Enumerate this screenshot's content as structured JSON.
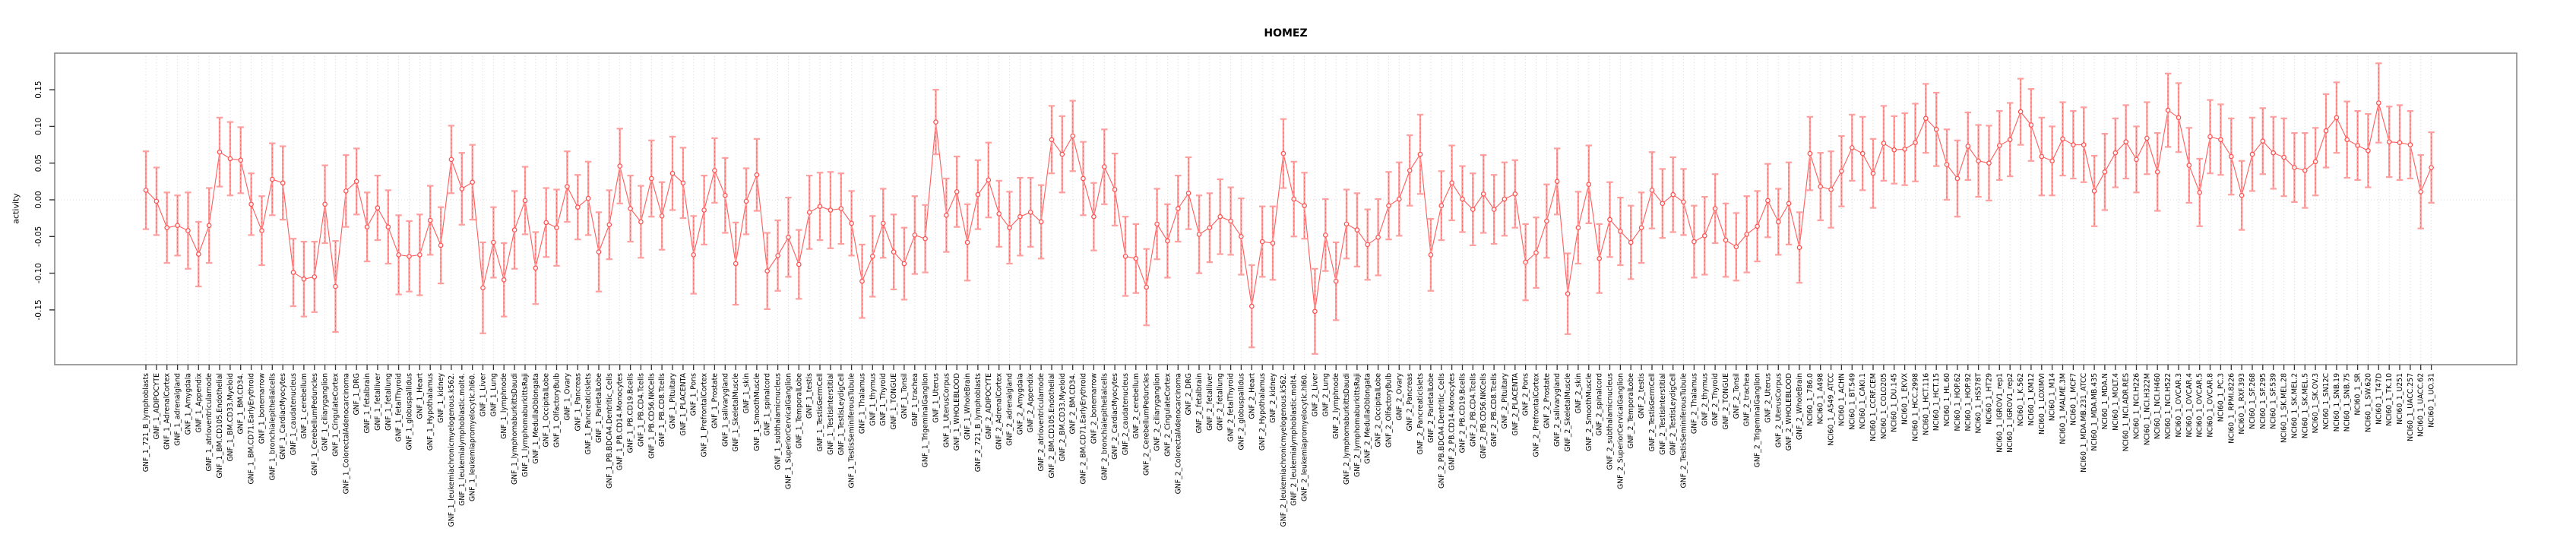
{
  "page": {
    "title": "HOMEZ"
  },
  "chart_data": {
    "type": "line",
    "title": "HOMEZ",
    "subtitle": "",
    "xlabel": "",
    "ylabel": "activity",
    "ylim": [
      -0.225,
      0.2
    ],
    "yticks": [
      "0.15",
      "0.10",
      "0.05",
      "0.00",
      "-0.05",
      "-0.10",
      "-0.15"
    ],
    "ytick_values": [
      0.15,
      0.1,
      0.05,
      0.0,
      -0.05,
      -0.1,
      -0.15
    ],
    "grid": true,
    "legend": "none",
    "marker": "open-circle",
    "error_bars": true,
    "colors": {
      "point": "#ff4d4d",
      "line": "#ff5c5c",
      "error_bar": "#ffa0a0",
      "error_dash": "#ff6060",
      "grid": "#d9d9d9",
      "box": "#888888",
      "tick": "#333333",
      "text": "#000000"
    },
    "columns": [
      "label",
      "value",
      "ci_half_width"
    ],
    "points": [
      [
        "GNF_1_721_B_lymphoblasts",
        0.013,
        0.053
      ],
      [
        "GNF_1_ADIPOCYTE",
        -0.002,
        0.046
      ],
      [
        "GNF_1_AdrenalCortex",
        -0.038,
        0.048
      ],
      [
        "GNF_1_adrenalgland",
        -0.035,
        0.041
      ],
      [
        "GNF_1_Amygdala",
        -0.042,
        0.052
      ],
      [
        "GNF_1_Appendix",
        -0.074,
        0.044
      ],
      [
        "GNF_1_atrioventricularnode",
        -0.035,
        0.051
      ],
      [
        "GNF_1_BM.CD105.Endothelial",
        0.065,
        0.047
      ],
      [
        "GNF_1_BM.CD33.Myeloid",
        0.056,
        0.05
      ],
      [
        "GNF_1_BM.CD34.",
        0.054,
        0.045
      ],
      [
        "GNF_1_BM.CD71.EarlyErythroid",
        -0.006,
        0.042
      ],
      [
        "GNF_1_bonemarrow",
        -0.042,
        0.047
      ],
      [
        "GNF_1_bronchialepithelialcells",
        0.028,
        0.049
      ],
      [
        "GNF_1_CardiacMyocytes",
        0.023,
        0.05
      ],
      [
        "GNF_1_caudatenucleus",
        -0.099,
        0.046
      ],
      [
        "GNF_1_cerebellum",
        -0.108,
        0.051
      ],
      [
        "GNF_1_CerebellumPeduncles",
        -0.105,
        0.048
      ],
      [
        "GNF_1_ciliaryganglion",
        -0.006,
        0.053
      ],
      [
        "GNF_1_CingulateCortex",
        -0.118,
        0.062
      ],
      [
        "GNF_1_ColorectalAdenocarcinoma",
        0.012,
        0.049
      ],
      [
        "GNF_1_DRG",
        0.025,
        0.045
      ],
      [
        "GNF_1_fetalbrain",
        -0.037,
        0.047
      ],
      [
        "GNF_1_fetalliver",
        -0.011,
        0.044
      ],
      [
        "GNF_1_fetallung",
        -0.037,
        0.05
      ],
      [
        "GNF_1_fetalThyroid",
        -0.075,
        0.054
      ],
      [
        "GNF_1_globuspallidus",
        -0.077,
        0.048
      ],
      [
        "GNF_1_Heart",
        -0.075,
        0.055
      ],
      [
        "GNF_1_Hypothalamus",
        -0.028,
        0.047
      ],
      [
        "GNF_1_kidney",
        -0.062,
        0.052
      ],
      [
        "GNF_1_leukemiachronicmyelogenous.k562.",
        0.055,
        0.046
      ],
      [
        "GNF_1_leukemialymphoblastic.molt4.",
        0.015,
        0.049
      ],
      [
        "GNF_1_leukemiapromyelocytic.hl60.",
        0.024,
        0.051
      ],
      [
        "GNF_1_Liver",
        -0.12,
        0.062
      ],
      [
        "GNF_1_Lung",
        -0.058,
        0.048
      ],
      [
        "GNF_1_lymphnode",
        -0.109,
        0.05
      ],
      [
        "GNF_1_lymphomaburkittsDaudi",
        -0.041,
        0.053
      ],
      [
        "GNF_1_lymphomaburkittsRaji",
        -0.001,
        0.046
      ],
      [
        "GNF_1_MedullaOblongata",
        -0.093,
        0.049
      ],
      [
        "GNF_1_OccipitalLobe",
        -0.031,
        0.047
      ],
      [
        "GNF_1_OlfactoryBulb",
        -0.038,
        0.052
      ],
      [
        "GNF_1_Ovary",
        0.018,
        0.048
      ],
      [
        "GNF_1_Pancreas",
        -0.01,
        0.044
      ],
      [
        "GNF_1_PancreaticIslets",
        0.002,
        0.05
      ],
      [
        "GNF_1_ParietalLobe",
        -0.071,
        0.054
      ],
      [
        "GNF_1_PB.BDCA4.Dentritic_Cells",
        -0.034,
        0.047
      ],
      [
        "GNF_1_PB.CD14.Monocytes",
        0.046,
        0.051
      ],
      [
        "GNF_1_PB.CD19.Bcells",
        -0.012,
        0.045
      ],
      [
        "GNF_1_PB.CD4.Tcells",
        -0.03,
        0.049
      ],
      [
        "GNF_1_PB.CD56.NKCells",
        0.029,
        0.052
      ],
      [
        "GNF_1_PB.CD8.Tcells",
        -0.022,
        0.046
      ],
      [
        "GNF_1_Pituitary",
        0.036,
        0.05
      ],
      [
        "GNF_1_PLACENTA",
        0.023,
        0.048
      ],
      [
        "GNF_1_Pons",
        -0.075,
        0.053
      ],
      [
        "GNF_1_PrefrontalCortex",
        -0.014,
        0.047
      ],
      [
        "GNF_1_Prostate",
        0.04,
        0.044
      ],
      [
        "GNF_1_salivarygland",
        0.006,
        0.051
      ],
      [
        "GNF_1_SkeletalMuscle",
        -0.087,
        0.056
      ],
      [
        "GNF_1_skin",
        -0.002,
        0.045
      ],
      [
        "GNF_1_SmoothMuscle",
        0.034,
        0.049
      ],
      [
        "GNF_1_spinalcord",
        -0.097,
        0.052
      ],
      [
        "GNF_1_subthalamicnucleus",
        -0.076,
        0.048
      ],
      [
        "GNF_1_SuperiorCervicalGanglion",
        -0.051,
        0.054
      ],
      [
        "GNF_1_TemporalLobe",
        -0.088,
        0.047
      ],
      [
        "GNF_1_testis",
        -0.017,
        0.05
      ],
      [
        "GNF_1_TestisGermCell",
        -0.009,
        0.046
      ],
      [
        "GNF_1_TestisInterstitial",
        -0.014,
        0.052
      ],
      [
        "GNF_1_TestisLeydigCell",
        -0.012,
        0.048
      ],
      [
        "GNF_1_TestisSeminiferousTubule",
        -0.032,
        0.044
      ],
      [
        "GNF_1_Thalamus",
        -0.111,
        0.05
      ],
      [
        "GNF_1_thymus",
        -0.077,
        0.055
      ],
      [
        "GNF_1_Thyroid",
        -0.032,
        0.047
      ],
      [
        "GNF_1_TONGUE",
        -0.071,
        0.051
      ],
      [
        "GNF_1_Tonsil",
        -0.087,
        0.049
      ],
      [
        "GNF_1_trachea",
        -0.048,
        0.053
      ],
      [
        "GNF_1_TrigeminalGanglion",
        -0.053,
        0.046
      ],
      [
        "GNF_1_Uterus",
        0.106,
        0.044
      ],
      [
        "GNF_1_UterusCorpus",
        -0.021,
        0.05
      ],
      [
        "GNF_1_WHOLEBLOOD",
        0.011,
        0.048
      ],
      [
        "GNF_1_WholeBrain",
        -0.058,
        0.052
      ],
      [
        "GNF_2_721_B_lymphoblasts",
        0.007,
        0.047
      ],
      [
        "GNF_2_ADIPOCYTE",
        0.027,
        0.051
      ],
      [
        "GNF_2_AdrenalCortex",
        -0.019,
        0.045
      ],
      [
        "GNF_2_adrenalgland",
        -0.038,
        0.049
      ],
      [
        "GNF_2_Amygdala",
        -0.023,
        0.053
      ],
      [
        "GNF_2_Appendix",
        -0.017,
        0.047
      ],
      [
        "GNF_2_atrioventricularnode",
        -0.03,
        0.05
      ],
      [
        "GNF_2_BM.CD105.Endothelial",
        0.082,
        0.046
      ],
      [
        "GNF_2_BM.CD33.Myeloid",
        0.062,
        0.052
      ],
      [
        "GNF_2_BM.CD34.",
        0.087,
        0.048
      ],
      [
        "GNF_2_BM.CD71.EarlyErythroid",
        0.029,
        0.05
      ],
      [
        "GNF_2_bonemarrow",
        -0.023,
        0.046
      ],
      [
        "GNF_2_bronchialepithelialcells",
        0.045,
        0.051
      ],
      [
        "GNF_2_CardiacMyocytes",
        0.014,
        0.049
      ],
      [
        "GNF_2_caudatenucleus",
        -0.077,
        0.054
      ],
      [
        "GNF_2_cerebellum",
        -0.08,
        0.047
      ],
      [
        "GNF_2_CerebellumPeduncles",
        -0.119,
        0.052
      ],
      [
        "GNF_2_ciliaryganglion",
        -0.033,
        0.048
      ],
      [
        "GNF_2_CingulateCortex",
        -0.056,
        0.05
      ],
      [
        "GNF_2_ColorectalAdenocarcinoma",
        -0.012,
        0.045
      ],
      [
        "GNF_2_DRG",
        0.009,
        0.049
      ],
      [
        "GNF_2_fetalbrain",
        -0.047,
        0.053
      ],
      [
        "GNF_2_fetalliver",
        -0.038,
        0.047
      ],
      [
        "GNF_2_fetallung",
        -0.023,
        0.051
      ],
      [
        "GNF_2_fetalThyroid",
        -0.029,
        0.046
      ],
      [
        "GNF_2_globuspallidus",
        -0.05,
        0.052
      ],
      [
        "GNF_2_Heart",
        -0.145,
        0.056
      ],
      [
        "GNF_2_Hypothalamus",
        -0.057,
        0.048
      ],
      [
        "GNF_2_kidney",
        -0.059,
        0.05
      ],
      [
        "GNF_2_leukemiachronicmyelogenous.k562.",
        0.063,
        0.047
      ],
      [
        "GNF_2_leukemialymphoblastic.molt4.",
        0.001,
        0.051
      ],
      [
        "GNF_2_leukemiapromyelocytic.hl60.",
        -0.008,
        0.045
      ],
      [
        "GNF_2_Liver",
        -0.152,
        0.058
      ],
      [
        "GNF_2_Lung",
        -0.048,
        0.049
      ],
      [
        "GNF_2_lymphnode",
        -0.111,
        0.053
      ],
      [
        "GNF_2_lymphomaburkittsDaudi",
        -0.033,
        0.047
      ],
      [
        "GNF_2_lymphomaburkittsRaji",
        -0.041,
        0.05
      ],
      [
        "GNF_2_MedullaOblongata",
        -0.061,
        0.048
      ],
      [
        "GNF_2_OccipitalLobe",
        -0.051,
        0.052
      ],
      [
        "GNF_2_OlfactoryBulb",
        -0.008,
        0.046
      ],
      [
        "GNF_2_Ovary",
        0.001,
        0.05
      ],
      [
        "GNF_2_Pancreas",
        0.04,
        0.048
      ],
      [
        "GNF_2_PancreaticIslets",
        0.062,
        0.054
      ],
      [
        "GNF_2_ParietalLobe",
        -0.075,
        0.049
      ],
      [
        "GNF_2_PB.BDCA4.Dentritic_Cells",
        -0.008,
        0.047
      ],
      [
        "GNF_2_PB.CD14.Monocytes",
        0.023,
        0.051
      ],
      [
        "GNF_2_PB.CD19.Bcells",
        0.001,
        0.045
      ],
      [
        "GNF_2_PB.CD4.Tcells",
        -0.013,
        0.049
      ],
      [
        "GNF_2_PB.CD56.NKCells",
        0.008,
        0.053
      ],
      [
        "GNF_2_PB.CD8.Tcells",
        -0.013,
        0.047
      ],
      [
        "GNF_2_Pituitary",
        0.001,
        0.05
      ],
      [
        "GNF_2_PLACENTA",
        0.008,
        0.046
      ],
      [
        "GNF_2_Pons",
        -0.085,
        0.052
      ],
      [
        "GNF_2_PrefrontalCortex",
        -0.072,
        0.048
      ],
      [
        "GNF_2_Prostate",
        -0.029,
        0.05
      ],
      [
        "GNF_2_salivarygland",
        0.025,
        0.045
      ],
      [
        "GNF_2_SkeletalMuscle",
        -0.128,
        0.055
      ],
      [
        "GNF_2_skin",
        -0.038,
        0.049
      ],
      [
        "GNF_2_SmoothMuscle",
        0.021,
        0.053
      ],
      [
        "GNF_2_spinalcord",
        -0.08,
        0.047
      ],
      [
        "GNF_2_subthalamicnucleus",
        -0.027,
        0.051
      ],
      [
        "GNF_2_SuperiorCervicalGanglion",
        -0.043,
        0.046
      ],
      [
        "GNF_2_TemporalLobe",
        -0.058,
        0.05
      ],
      [
        "GNF_2_testis",
        -0.038,
        0.048
      ],
      [
        "GNF_2_TestisGermCell",
        0.013,
        0.052
      ],
      [
        "GNF_2_TestisInterstitial",
        -0.005,
        0.047
      ],
      [
        "GNF_2_TestisLeydigCell",
        0.007,
        0.051
      ],
      [
        "GNF_2_TestisSeminiferousTubule",
        -0.003,
        0.045
      ],
      [
        "GNF_2_Thalamus",
        -0.057,
        0.049
      ],
      [
        "GNF_2_thymus",
        -0.049,
        0.053
      ],
      [
        "GNF_2_Thyroid",
        -0.012,
        0.047
      ],
      [
        "GNF_2_TONGUE",
        -0.055,
        0.05
      ],
      [
        "GNF_2_Tonsil",
        -0.064,
        0.046
      ],
      [
        "GNF_2_trachea",
        -0.047,
        0.052
      ],
      [
        "GNF_2_TrigeminalGanglion",
        -0.036,
        0.048
      ],
      [
        "GNF_2_Uterus",
        -0.001,
        0.05
      ],
      [
        "GNF_2_UterusCorpus",
        -0.03,
        0.045
      ],
      [
        "GNF_2_WHOLEBLOOD",
        -0.005,
        0.056
      ],
      [
        "GNF_2_WholeBrain",
        -0.065,
        0.048
      ],
      [
        "NCI60_1_786.0",
        0.063,
        0.05
      ],
      [
        "NCI60_1_A498",
        0.018,
        0.046
      ],
      [
        "NCI60_1_A549_ATCC",
        0.014,
        0.052
      ],
      [
        "NCI60_1_ACHN",
        0.039,
        0.048
      ],
      [
        "NCI60_1_BT.549",
        0.071,
        0.045
      ],
      [
        "NCI60_1_CAKI.1",
        0.063,
        0.05
      ],
      [
        "NCI60_1_CCRF.CEM",
        0.036,
        0.047
      ],
      [
        "NCI60_1_COLO205",
        0.077,
        0.051
      ],
      [
        "NCI60_1_DU.145",
        0.068,
        0.046
      ],
      [
        "NCI60_1_EKVX",
        0.069,
        0.049
      ],
      [
        "NCI60_1_HCC.2998",
        0.078,
        0.053
      ],
      [
        "NCI60_1_HCT.116",
        0.111,
        0.047
      ],
      [
        "NCI60_1_HCT.15",
        0.096,
        0.05
      ],
      [
        "NCI60_1_HL.60",
        0.048,
        0.048
      ],
      [
        "NCI60_1_HOP.62",
        0.029,
        0.052
      ],
      [
        "NCI60_1_HOP.92",
        0.073,
        0.046
      ],
      [
        "NCI60_1_HS578T",
        0.053,
        0.049
      ],
      [
        "NCI60_1_HT29",
        0.05,
        0.051
      ],
      [
        "NCI60_1_IGROV1_rep1",
        0.074,
        0.047
      ],
      [
        "NCI60_1_IGROV1_rep2",
        0.082,
        0.05
      ],
      [
        "NCI60_1_K.562",
        0.12,
        0.045
      ],
      [
        "NCI60_1_KM12",
        0.102,
        0.049
      ],
      [
        "NCI60_1_LOXIMVI",
        0.059,
        0.053
      ],
      [
        "NCI60_1_M14",
        0.053,
        0.047
      ],
      [
        "NCI60_1_MALME.3M",
        0.083,
        0.05
      ],
      [
        "NCI60_1_MCF7",
        0.075,
        0.046
      ],
      [
        "NCI60_1_MDA.MB.231_ATCC",
        0.075,
        0.051
      ],
      [
        "NCI60_1_MDA.MB.435",
        0.012,
        0.048
      ],
      [
        "NCI60_1_MDA.N",
        0.038,
        0.052
      ],
      [
        "NCI60_1_MOLT.4",
        0.064,
        0.047
      ],
      [
        "NCI60_1_NCI.ADR.RES",
        0.079,
        0.05
      ],
      [
        "NCI60_1_NCI.H226",
        0.055,
        0.045
      ],
      [
        "NCI60_1_NCI.H322M",
        0.084,
        0.049
      ],
      [
        "NCI60_1_NCI.H460",
        0.038,
        0.053
      ],
      [
        "NCI60_1_NCI.H522",
        0.122,
        0.05
      ],
      [
        "NCI60_1_OVCAR.3",
        0.112,
        0.047
      ],
      [
        "NCI60_1_OVCAR.4",
        0.047,
        0.051
      ],
      [
        "NCI60_1_OVCAR.5",
        0.01,
        0.046
      ],
      [
        "NCI60_1_OVCAR.8",
        0.086,
        0.05
      ],
      [
        "NCI60_1_PC.3",
        0.082,
        0.048
      ],
      [
        "NCI60_1_RPMI.8226",
        0.059,
        0.052
      ],
      [
        "NCI60_1_RXF.393",
        0.006,
        0.047
      ],
      [
        "NCI60_1_SF.268",
        0.062,
        0.05
      ],
      [
        "NCI60_1_SF.295",
        0.08,
        0.045
      ],
      [
        "NCI60_1_SF.539",
        0.064,
        0.049
      ],
      [
        "NCI60_1_SK.MEL.28",
        0.058,
        0.053
      ],
      [
        "NCI60_1_SK.MEL.2",
        0.044,
        0.047
      ],
      [
        "NCI60_1_SK.MEL.5",
        0.04,
        0.051
      ],
      [
        "NCI60_1_SK.OV.3",
        0.052,
        0.046
      ],
      [
        "NCI60_1_SN12C",
        0.094,
        0.05
      ],
      [
        "NCI60_1_SNB.19",
        0.112,
        0.048
      ],
      [
        "NCI60_1_SNB.75",
        0.082,
        0.052
      ],
      [
        "NCI60_1_SR",
        0.074,
        0.047
      ],
      [
        "NCI60_1_SW.620",
        0.067,
        0.05
      ],
      [
        "NCI60_1_T47D",
        0.132,
        0.054
      ],
      [
        "NCI60_1_TK.10",
        0.079,
        0.048
      ],
      [
        "NCI60_1_U251",
        0.078,
        0.051
      ],
      [
        "NCI60_1_UACC.257",
        0.075,
        0.046
      ],
      [
        "NCI60_1_UACC.62",
        0.011,
        0.05
      ],
      [
        "NCI60_1_UO.31",
        0.044,
        0.048
      ]
    ]
  }
}
